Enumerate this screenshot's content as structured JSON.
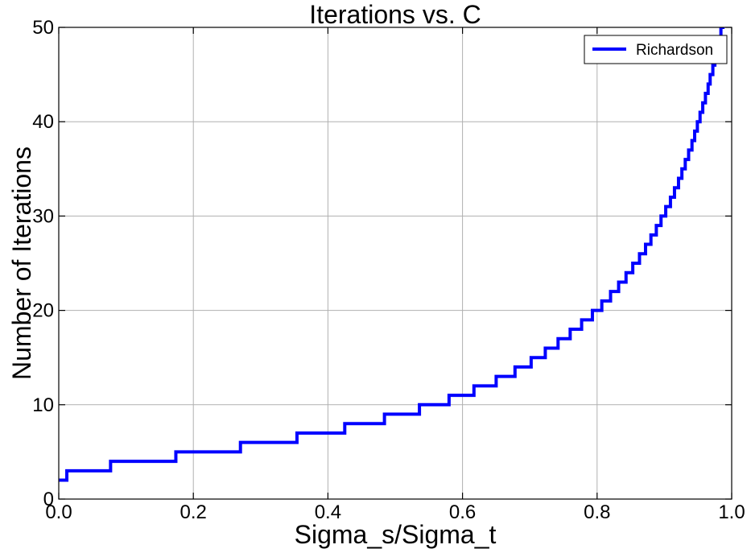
{
  "chart_data": {
    "type": "line",
    "title": "Iterations vs. C",
    "xlabel": "Sigma_s/Sigma_t",
    "ylabel": "Number of Iterations",
    "xlim": [
      0.0,
      1.0
    ],
    "ylim": [
      0,
      50
    ],
    "grid": true,
    "legend_position": "top-right",
    "x_ticks": [
      "0.0",
      "0.2",
      "0.4",
      "0.6",
      "0.8",
      "1.0"
    ],
    "y_ticks": [
      "0",
      "10",
      "20",
      "30",
      "40",
      "50"
    ],
    "series": [
      {
        "name": "Richardson",
        "color": "#0000ff",
        "step": "post",
        "x": [
          0.0,
          0.012,
          0.077,
          0.174,
          0.27,
          0.354,
          0.425,
          0.484,
          0.536,
          0.58,
          0.617,
          0.65,
          0.678,
          0.702,
          0.723,
          0.742,
          0.76,
          0.777,
          0.793,
          0.807,
          0.82,
          0.832,
          0.843,
          0.853,
          0.863,
          0.872,
          0.88,
          0.888,
          0.895,
          0.902,
          0.909,
          0.915,
          0.921,
          0.926,
          0.931,
          0.936,
          0.941,
          0.945,
          0.949,
          0.953,
          0.957,
          0.961,
          0.965,
          0.968,
          0.972,
          0.975,
          0.978,
          0.981,
          0.984,
          0.987,
          0.99,
          0.993,
          0.996,
          1.0
        ],
        "y": [
          2,
          3,
          4,
          5,
          6,
          7,
          8,
          9,
          10,
          11,
          12,
          13,
          14,
          15,
          16,
          17,
          18,
          19,
          20,
          21,
          22,
          23,
          24,
          25,
          26,
          27,
          28,
          29,
          30,
          31,
          32,
          33,
          34,
          35,
          36,
          37,
          38,
          39,
          40,
          41,
          42,
          43,
          44,
          45,
          46,
          47,
          48,
          49,
          50,
          51,
          52,
          53,
          54,
          55
        ]
      }
    ]
  }
}
